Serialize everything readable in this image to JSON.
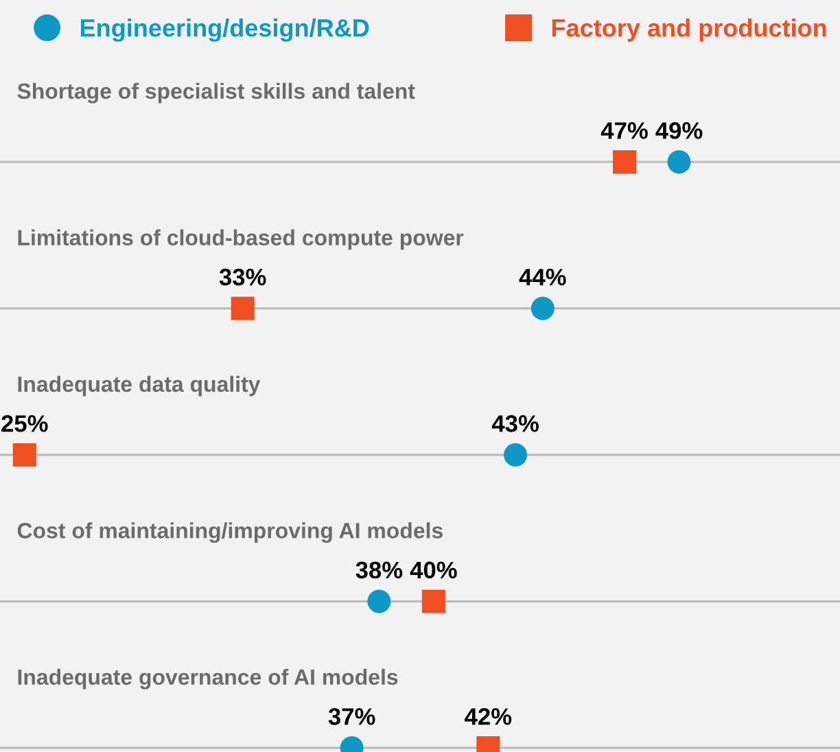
{
  "chart_data": {
    "type": "scatter",
    "orientation": "horizontal",
    "categories": [
      "Shortage of specialist skills and talent",
      "Limitations of cloud-based compute power",
      "Inadequate data quality",
      "Cost of maintaining/improving AI models",
      "Inadequate governance of AI models"
    ],
    "xlim": [
      24.1,
      54.9
    ],
    "legend": "top",
    "series": [
      {
        "name": "Engineering/design/R&D",
        "color": "#0f97c6",
        "marker": "circle",
        "values": [
          49,
          44,
          43,
          38,
          37
        ],
        "value_labels": [
          "49%",
          "44%",
          "43%",
          "38%",
          "37%"
        ]
      },
      {
        "name": "Factory and production",
        "color": "#f04e23",
        "marker": "square",
        "values": [
          47,
          33,
          25,
          40,
          42
        ],
        "value_labels": [
          "47%",
          "33%",
          "25%",
          "40%",
          "42%"
        ]
      }
    ]
  }
}
